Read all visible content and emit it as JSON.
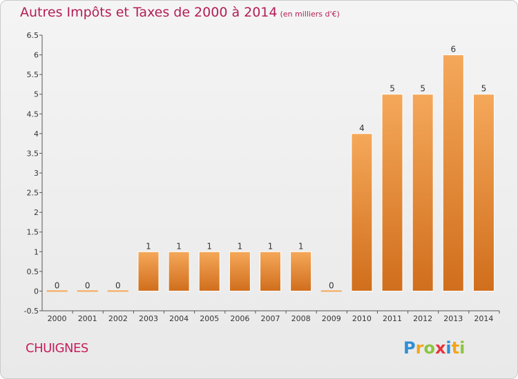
{
  "header": {
    "title": "Autres Impôts et Taxes de 2000 à 2014",
    "subtitle": "(en milliers d'€)"
  },
  "commune": "CHUIGNES",
  "brand": {
    "text": "Proxiti",
    "letters": [
      "P",
      "r",
      "o",
      "x",
      "i",
      "t",
      "i"
    ],
    "colors": [
      "#2e8fd6",
      "#f4a51c",
      "#8cc63f",
      "#e8343f",
      "#2e8fd6",
      "#f4a51c",
      "#8cc63f"
    ]
  },
  "colors": {
    "bar": "#e8883a",
    "bar_light": "#f5a85a",
    "bar_dark": "#d06e1c",
    "title": "#b31d55"
  },
  "chart_data": {
    "type": "bar",
    "title": "Autres Impôts et Taxes de 2000 à 2014",
    "subtitle": "(en milliers d'€)",
    "categories": [
      "2000",
      "2001",
      "2002",
      "2003",
      "2004",
      "2005",
      "2006",
      "2007",
      "2008",
      "2009",
      "2010",
      "2011",
      "2012",
      "2013",
      "2014"
    ],
    "values": [
      0,
      0,
      0,
      1,
      1,
      1,
      1,
      1,
      1,
      0,
      4,
      5,
      5,
      6,
      5
    ],
    "value_labels": [
      "0",
      "0",
      "0",
      "1",
      "1",
      "1",
      "1",
      "1",
      "1",
      "0",
      "4",
      "5",
      "5",
      "6",
      "5"
    ],
    "ylim": [
      -0.5,
      6.5
    ],
    "yticks": [
      -0.5,
      0,
      0.5,
      1,
      1.5,
      2,
      2.5,
      3,
      3.5,
      4,
      4.5,
      5,
      5.5,
      6,
      6.5
    ],
    "ytick_labels": [
      "-0.5",
      "0",
      "0.5",
      "1",
      "1.5",
      "2",
      "2.5",
      "3",
      "3.5",
      "4",
      "4.5",
      "5",
      "5.5",
      "6",
      "6.5"
    ],
    "grid": false
  }
}
